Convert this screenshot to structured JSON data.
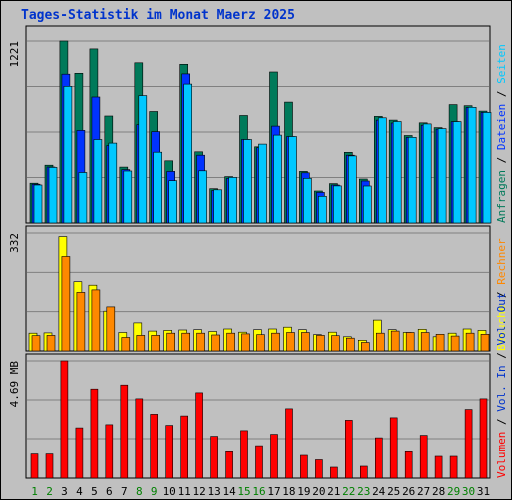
{
  "title": "Tages-Statistik im Monat Maerz 2025",
  "colors": {
    "background": "#c0c0c0",
    "panel": "#c0c0c0",
    "grid": "#808080",
    "title": "#0033cc",
    "anfragen": "#007a5a",
    "dateien": "#0033ff",
    "seiten": "#00c8ff",
    "besuche": "#ffff00",
    "rechner": "#ff8800",
    "volumen": "#ff0000",
    "vol_in": "#0033cc",
    "vol_out": "#0033cc",
    "weekend_label": "#008000",
    "weekday_label": "#000000"
  },
  "chart_data": [
    {
      "type": "bar",
      "name": "hits-panel",
      "ymax_label": "1221",
      "ylim": [
        0,
        1221
      ],
      "categories": [
        "1",
        "2",
        "3",
        "4",
        "5",
        "6",
        "7",
        "8",
        "9",
        "10",
        "11",
        "12",
        "13",
        "14",
        "15",
        "16",
        "17",
        "18",
        "19",
        "20",
        "21",
        "22",
        "23",
        "24",
        "25",
        "26",
        "27",
        "28",
        "29",
        "30",
        "31"
      ],
      "weekend_days": [
        "1",
        "2",
        "8",
        "9",
        "15",
        "16",
        "22",
        "23",
        "29",
        "30"
      ],
      "side_labels": [
        "Anfragen",
        "Dateien",
        "Seiten"
      ],
      "side_label_separator": " / ",
      "series": [
        {
          "name": "Anfragen",
          "values": [
            267,
            388,
            1221,
            1004,
            1168,
            718,
            375,
            1075,
            748,
            417,
            1065,
            478,
            230,
            311,
            721,
            511,
            1013,
            811,
            346,
            215,
            264,
            474,
            295,
            715,
            690,
            587,
            672,
            640,
            794,
            787,
            751
          ]
        },
        {
          "name": "Dateien",
          "values": [
            260,
            376,
            998,
            621,
            845,
            520,
            358,
            660,
            613,
            346,
            1000,
            455,
            218,
            300,
            561,
            505,
            650,
            580,
            337,
            205,
            255,
            455,
            282,
            690,
            671,
            574,
            656,
            630,
            680,
            775,
            742
          ]
        },
        {
          "name": "Seiten",
          "values": [
            255,
            373,
            917,
            339,
            560,
            536,
            349,
            855,
            475,
            284,
            932,
            350,
            223,
            306,
            560,
            529,
            590,
            580,
            300,
            179,
            249,
            450,
            248,
            706,
            681,
            575,
            665,
            633,
            680,
            776,
            742
          ]
        }
      ]
    },
    {
      "type": "bar",
      "name": "visits-panel",
      "ymax_label": "332",
      "ylim": [
        0,
        332
      ],
      "categories": [
        "1",
        "2",
        "3",
        "4",
        "5",
        "6",
        "7",
        "8",
        "9",
        "10",
        "11",
        "12",
        "13",
        "14",
        "15",
        "16",
        "17",
        "18",
        "19",
        "20",
        "21",
        "22",
        "23",
        "24",
        "25",
        "26",
        "27",
        "28",
        "29",
        "30",
        "31"
      ],
      "side_labels": [
        "Besuche",
        "Rechner"
      ],
      "side_label_separator": " / ",
      "series": [
        {
          "name": "Besuche",
          "values": [
            50,
            51,
            322,
            195,
            185,
            112,
            52,
            79,
            56,
            58,
            59,
            60,
            55,
            62,
            53,
            60,
            62,
            67,
            60,
            46,
            53,
            40,
            30,
            87,
            60,
            52,
            61,
            40,
            50,
            62,
            58
          ]
        },
        {
          "name": "Rechner",
          "values": [
            43,
            44,
            266,
            165,
            172,
            124,
            38,
            44,
            44,
            50,
            50,
            50,
            45,
            50,
            48,
            46,
            50,
            52,
            52,
            44,
            43,
            36,
            24,
            50,
            56,
            52,
            52,
            47,
            42,
            50,
            47
          ]
        }
      ]
    },
    {
      "type": "bar",
      "name": "volume-panel",
      "ymax_label": "4.69 MB",
      "ylim": [
        0,
        4.69
      ],
      "categories": [
        "1",
        "2",
        "3",
        "4",
        "5",
        "6",
        "7",
        "8",
        "9",
        "10",
        "11",
        "12",
        "13",
        "14",
        "15",
        "16",
        "17",
        "18",
        "19",
        "20",
        "21",
        "22",
        "23",
        "24",
        "25",
        "26",
        "27",
        "28",
        "29",
        "30",
        "31"
      ],
      "side_labels": [
        "Volumen",
        "Vol. In",
        "Vol. Out"
      ],
      "side_label_separator": " / ",
      "series": [
        {
          "name": "Volumen",
          "values": [
            0.98,
            0.98,
            4.69,
            2.0,
            3.56,
            2.13,
            3.72,
            3.17,
            2.55,
            2.1,
            2.48,
            3.41,
            1.66,
            1.07,
            1.89,
            1.28,
            1.74,
            2.77,
            0.92,
            0.74,
            0.44,
            2.31,
            0.48,
            1.6,
            2.41,
            1.07,
            1.7,
            0.88,
            0.88,
            2.74,
            3.17
          ]
        }
      ]
    }
  ]
}
